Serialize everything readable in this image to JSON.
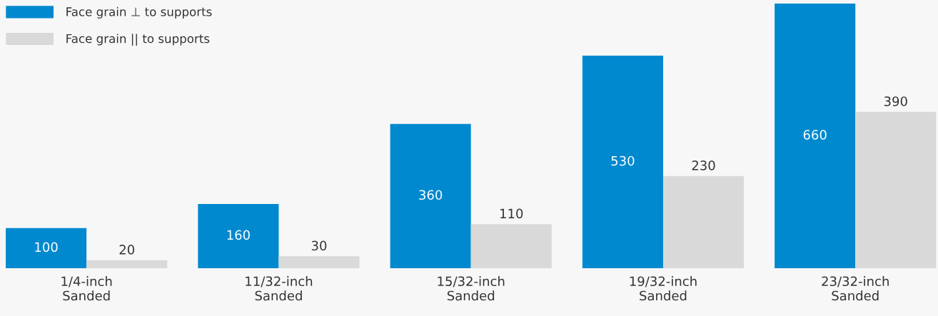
{
  "chart_data": {
    "type": "bar",
    "categories": [
      "1/4-inch\nSanded",
      "11/32-inch\nSanded",
      "15/32-inch\nSanded",
      "19/32-inch\nSanded",
      "23/32-inch\nSanded"
    ],
    "series": [
      {
        "name": "Face grain ⊥ to supports",
        "color": "#0089cf",
        "values": [
          100,
          160,
          360,
          530,
          660
        ]
      },
      {
        "name": "Face grain || to supports",
        "color": "#d9d9d9",
        "values": [
          20,
          30,
          110,
          230,
          390
        ]
      }
    ],
    "ylim": [
      0,
      669
    ],
    "data_labels": true,
    "legend": "top left",
    "grid": false,
    "tick_labels": "x"
  }
}
